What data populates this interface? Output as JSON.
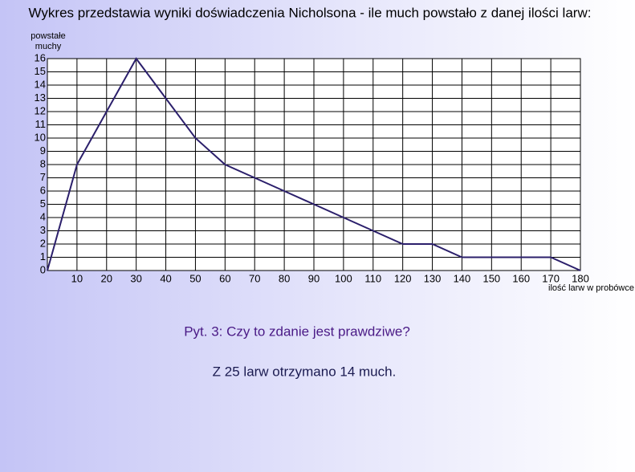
{
  "chart_data": {
    "type": "line",
    "title": "Wykres przedstawia wyniki doświadczenia Nicholsona - ile much powstało z danej ilości larw:",
    "ylabel": "powstałe muchy",
    "xlabel": "ilość larw w probówce",
    "x": [
      0,
      10,
      30,
      40,
      50,
      60,
      70,
      80,
      90,
      100,
      110,
      120,
      130,
      140,
      150,
      160,
      170,
      180
    ],
    "values": [
      0,
      8,
      16,
      13,
      10,
      8,
      7,
      6,
      5,
      4,
      3,
      2,
      2,
      1,
      1,
      1,
      1,
      0
    ],
    "color": "#2b1f6b",
    "xlim": [
      0,
      180
    ],
    "xticks": [
      10,
      20,
      30,
      40,
      50,
      60,
      70,
      80,
      90,
      100,
      110,
      120,
      130,
      140,
      150,
      160,
      170,
      180
    ],
    "ylim": [
      0,
      16
    ],
    "yticks": [
      0,
      1,
      2,
      3,
      4,
      5,
      6,
      7,
      8,
      9,
      10,
      11,
      12,
      13,
      14,
      15,
      16
    ],
    "grid": true
  },
  "slide": {
    "question": "Pyt. 3: Czy to zdanie jest prawdziwe?",
    "statement": "Z 25 larw otrzymano 14 much."
  }
}
